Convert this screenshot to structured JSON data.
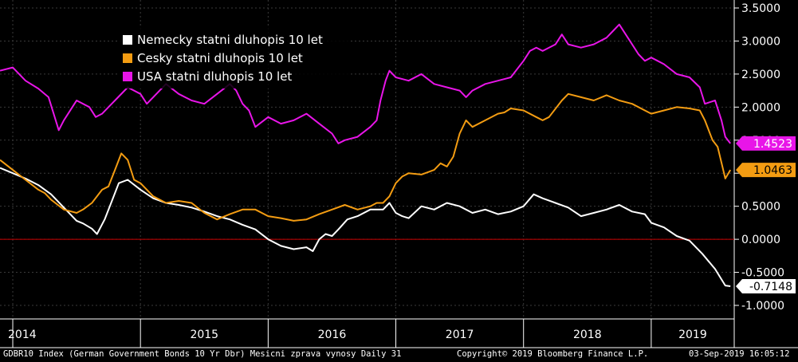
{
  "chart_data": {
    "type": "line",
    "y_axis_side": "right",
    "ylim": [
      -1.0,
      3.5
    ],
    "y_ticks": [
      3.5,
      3.0,
      2.5,
      2.0,
      1.5,
      1.0,
      0.5,
      0.0,
      -0.5,
      -1.0
    ],
    "y_tick_labels": [
      "3.5000",
      "3.0000",
      "2.5000",
      "2.0000",
      "1.5000",
      "1.0000",
      "0.5000",
      "0.0000",
      "-0.5000",
      "-1.0000"
    ],
    "xlim": [
      2013.9,
      2019.65
    ],
    "x_year_labels": [
      "2014",
      "2015",
      "2016",
      "2017",
      "2018",
      "2019"
    ],
    "reference_line": {
      "y": 0.0,
      "color": "#cc0000"
    },
    "legend_position": "top-left",
    "series": [
      {
        "name": "Nemecky statni dluhopis 10 let",
        "color": "#ffffff",
        "last_value_label": "-0.7148",
        "label_text_color": "#000000",
        "points": [
          [
            2013.9,
            1.08
          ],
          [
            2014.0,
            1.0
          ],
          [
            2014.1,
            0.92
          ],
          [
            2014.2,
            0.82
          ],
          [
            2014.3,
            0.68
          ],
          [
            2014.4,
            0.48
          ],
          [
            2014.5,
            0.28
          ],
          [
            2014.55,
            0.24
          ],
          [
            2014.62,
            0.16
          ],
          [
            2014.66,
            0.08
          ],
          [
            2014.72,
            0.3
          ],
          [
            2014.78,
            0.6
          ],
          [
            2014.83,
            0.85
          ],
          [
            2014.9,
            0.9
          ],
          [
            2015.0,
            0.75
          ],
          [
            2015.1,
            0.62
          ],
          [
            2015.2,
            0.55
          ],
          [
            2015.3,
            0.52
          ],
          [
            2015.4,
            0.48
          ],
          [
            2015.5,
            0.42
          ],
          [
            2015.6,
            0.35
          ],
          [
            2015.7,
            0.3
          ],
          [
            2015.8,
            0.22
          ],
          [
            2015.9,
            0.15
          ],
          [
            2016.0,
            0.0
          ],
          [
            2016.1,
            -0.1
          ],
          [
            2016.2,
            -0.15
          ],
          [
            2016.3,
            -0.12
          ],
          [
            2016.35,
            -0.18
          ],
          [
            2016.4,
            0.0
          ],
          [
            2016.45,
            0.08
          ],
          [
            2016.5,
            0.05
          ],
          [
            2016.55,
            0.15
          ],
          [
            2016.62,
            0.3
          ],
          [
            2016.7,
            0.35
          ],
          [
            2016.8,
            0.45
          ],
          [
            2016.9,
            0.45
          ],
          [
            2016.95,
            0.55
          ],
          [
            2017.0,
            0.4
          ],
          [
            2017.05,
            0.35
          ],
          [
            2017.1,
            0.32
          ],
          [
            2017.2,
            0.5
          ],
          [
            2017.3,
            0.45
          ],
          [
            2017.4,
            0.55
          ],
          [
            2017.5,
            0.5
          ],
          [
            2017.6,
            0.4
          ],
          [
            2017.7,
            0.45
          ],
          [
            2017.8,
            0.38
          ],
          [
            2017.9,
            0.42
          ],
          [
            2018.0,
            0.5
          ],
          [
            2018.08,
            0.68
          ],
          [
            2018.15,
            0.62
          ],
          [
            2018.25,
            0.55
          ],
          [
            2018.35,
            0.48
          ],
          [
            2018.45,
            0.35
          ],
          [
            2018.55,
            0.4
          ],
          [
            2018.65,
            0.45
          ],
          [
            2018.75,
            0.52
          ],
          [
            2018.85,
            0.42
          ],
          [
            2018.95,
            0.38
          ],
          [
            2019.0,
            0.25
          ],
          [
            2019.1,
            0.18
          ],
          [
            2019.2,
            0.05
          ],
          [
            2019.3,
            -0.02
          ],
          [
            2019.4,
            -0.22
          ],
          [
            2019.5,
            -0.45
          ],
          [
            2019.58,
            -0.7
          ],
          [
            2019.62,
            -0.71
          ]
        ]
      },
      {
        "name": "Cesky statni dluhopis 10 let",
        "color": "#f39c12",
        "last_value_label": "1.0463",
        "label_text_color": "#000000",
        "points": [
          [
            2013.9,
            1.2
          ],
          [
            2014.0,
            1.05
          ],
          [
            2014.1,
            0.9
          ],
          [
            2014.2,
            0.75
          ],
          [
            2014.25,
            0.7
          ],
          [
            2014.3,
            0.6
          ],
          [
            2014.4,
            0.45
          ],
          [
            2014.5,
            0.4
          ],
          [
            2014.55,
            0.45
          ],
          [
            2014.62,
            0.55
          ],
          [
            2014.7,
            0.75
          ],
          [
            2014.75,
            0.8
          ],
          [
            2014.8,
            1.05
          ],
          [
            2014.85,
            1.3
          ],
          [
            2014.9,
            1.2
          ],
          [
            2014.95,
            0.9
          ],
          [
            2015.0,
            0.85
          ],
          [
            2015.1,
            0.65
          ],
          [
            2015.2,
            0.55
          ],
          [
            2015.3,
            0.58
          ],
          [
            2015.4,
            0.55
          ],
          [
            2015.5,
            0.4
          ],
          [
            2015.6,
            0.3
          ],
          [
            2015.7,
            0.38
          ],
          [
            2015.8,
            0.45
          ],
          [
            2015.9,
            0.45
          ],
          [
            2016.0,
            0.35
          ],
          [
            2016.1,
            0.32
          ],
          [
            2016.2,
            0.28
          ],
          [
            2016.3,
            0.3
          ],
          [
            2016.4,
            0.38
          ],
          [
            2016.5,
            0.45
          ],
          [
            2016.6,
            0.52
          ],
          [
            2016.7,
            0.45
          ],
          [
            2016.8,
            0.5
          ],
          [
            2016.85,
            0.55
          ],
          [
            2016.9,
            0.55
          ],
          [
            2016.95,
            0.65
          ],
          [
            2017.0,
            0.85
          ],
          [
            2017.05,
            0.95
          ],
          [
            2017.1,
            1.0
          ],
          [
            2017.2,
            0.98
          ],
          [
            2017.3,
            1.05
          ],
          [
            2017.35,
            1.15
          ],
          [
            2017.4,
            1.1
          ],
          [
            2017.45,
            1.25
          ],
          [
            2017.5,
            1.6
          ],
          [
            2017.55,
            1.8
          ],
          [
            2017.6,
            1.7
          ],
          [
            2017.7,
            1.8
          ],
          [
            2017.8,
            1.9
          ],
          [
            2017.85,
            1.92
          ],
          [
            2017.9,
            1.98
          ],
          [
            2018.0,
            1.95
          ],
          [
            2018.1,
            1.85
          ],
          [
            2018.15,
            1.8
          ],
          [
            2018.2,
            1.85
          ],
          [
            2018.3,
            2.1
          ],
          [
            2018.35,
            2.2
          ],
          [
            2018.45,
            2.15
          ],
          [
            2018.55,
            2.1
          ],
          [
            2018.65,
            2.18
          ],
          [
            2018.75,
            2.1
          ],
          [
            2018.85,
            2.05
          ],
          [
            2018.95,
            1.95
          ],
          [
            2019.0,
            1.9
          ],
          [
            2019.1,
            1.95
          ],
          [
            2019.2,
            2.0
          ],
          [
            2019.3,
            1.98
          ],
          [
            2019.38,
            1.95
          ],
          [
            2019.42,
            1.8
          ],
          [
            2019.48,
            1.5
          ],
          [
            2019.52,
            1.4
          ],
          [
            2019.58,
            0.92
          ],
          [
            2019.62,
            1.05
          ]
        ]
      },
      {
        "name": "USA statni dluhopis 10 let",
        "color": "#e815e8",
        "last_value_label": "1.4523",
        "label_text_color": "#ffffff",
        "points": [
          [
            2013.9,
            2.55
          ],
          [
            2014.0,
            2.6
          ],
          [
            2014.1,
            2.4
          ],
          [
            2014.2,
            2.28
          ],
          [
            2014.28,
            2.15
          ],
          [
            2014.32,
            1.9
          ],
          [
            2014.36,
            1.65
          ],
          [
            2014.4,
            1.8
          ],
          [
            2014.5,
            2.1
          ],
          [
            2014.6,
            2.0
          ],
          [
            2014.65,
            1.85
          ],
          [
            2014.7,
            1.9
          ],
          [
            2014.8,
            2.1
          ],
          [
            2014.9,
            2.3
          ],
          [
            2015.0,
            2.2
          ],
          [
            2015.05,
            2.05
          ],
          [
            2015.1,
            2.15
          ],
          [
            2015.2,
            2.35
          ],
          [
            2015.3,
            2.2
          ],
          [
            2015.4,
            2.1
          ],
          [
            2015.5,
            2.05
          ],
          [
            2015.6,
            2.2
          ],
          [
            2015.7,
            2.35
          ],
          [
            2015.75,
            2.25
          ],
          [
            2015.8,
            2.05
          ],
          [
            2015.85,
            1.95
          ],
          [
            2015.9,
            1.7
          ],
          [
            2016.0,
            1.85
          ],
          [
            2016.1,
            1.75
          ],
          [
            2016.2,
            1.8
          ],
          [
            2016.3,
            1.9
          ],
          [
            2016.4,
            1.75
          ],
          [
            2016.5,
            1.6
          ],
          [
            2016.55,
            1.45
          ],
          [
            2016.6,
            1.5
          ],
          [
            2016.7,
            1.55
          ],
          [
            2016.8,
            1.7
          ],
          [
            2016.85,
            1.8
          ],
          [
            2016.88,
            2.1
          ],
          [
            2016.92,
            2.4
          ],
          [
            2016.95,
            2.55
          ],
          [
            2017.0,
            2.45
          ],
          [
            2017.1,
            2.4
          ],
          [
            2017.2,
            2.5
          ],
          [
            2017.3,
            2.35
          ],
          [
            2017.4,
            2.3
          ],
          [
            2017.5,
            2.25
          ],
          [
            2017.55,
            2.15
          ],
          [
            2017.6,
            2.25
          ],
          [
            2017.7,
            2.35
          ],
          [
            2017.8,
            2.4
          ],
          [
            2017.9,
            2.45
          ],
          [
            2018.0,
            2.7
          ],
          [
            2018.05,
            2.85
          ],
          [
            2018.1,
            2.9
          ],
          [
            2018.15,
            2.85
          ],
          [
            2018.25,
            2.95
          ],
          [
            2018.3,
            3.1
          ],
          [
            2018.35,
            2.95
          ],
          [
            2018.45,
            2.9
          ],
          [
            2018.55,
            2.95
          ],
          [
            2018.65,
            3.05
          ],
          [
            2018.7,
            3.15
          ],
          [
            2018.75,
            3.25
          ],
          [
            2018.8,
            3.1
          ],
          [
            2018.85,
            2.95
          ],
          [
            2018.9,
            2.8
          ],
          [
            2018.95,
            2.7
          ],
          [
            2019.0,
            2.75
          ],
          [
            2019.05,
            2.7
          ],
          [
            2019.1,
            2.65
          ],
          [
            2019.2,
            2.5
          ],
          [
            2019.3,
            2.45
          ],
          [
            2019.38,
            2.3
          ],
          [
            2019.42,
            2.05
          ],
          [
            2019.5,
            2.1
          ],
          [
            2019.55,
            1.8
          ],
          [
            2019.58,
            1.55
          ],
          [
            2019.62,
            1.45
          ]
        ]
      }
    ]
  },
  "footer": {
    "left": "GDBR10 Index (German Government Bonds 10 Yr Dbr) Mesicni zprava vynosy  Daily 31",
    "center": "Copyright© 2019 Bloomberg Finance L.P.",
    "right": "03-Sep-2019 16:05:12"
  }
}
